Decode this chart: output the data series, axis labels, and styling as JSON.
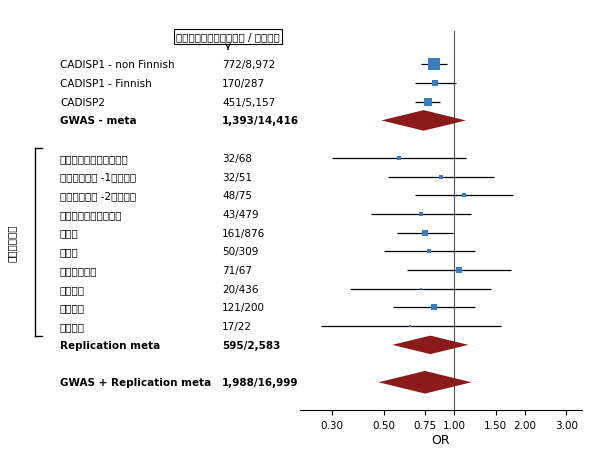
{
  "studies": [
    {
      "label": "CADISP1 - non Finnish",
      "n": "772/8,972",
      "or": 0.82,
      "ci_lo": 0.72,
      "ci_hi": 0.93,
      "bold": false,
      "shape": "square",
      "color": "#3a7abf",
      "marker_size": 8,
      "group": "gwas"
    },
    {
      "label": "CADISP1 - Finnish",
      "n": "170/287",
      "or": 0.83,
      "ci_lo": 0.68,
      "ci_hi": 1.02,
      "bold": false,
      "shape": "square",
      "color": "#3a7abf",
      "marker_size": 4,
      "group": "gwas"
    },
    {
      "label": "CADISP2",
      "n": "451/5,157",
      "or": 0.77,
      "ci_lo": 0.68,
      "ci_hi": 0.87,
      "bold": false,
      "shape": "square",
      "color": "#3a7abf",
      "marker_size": 6,
      "group": "gwas"
    },
    {
      "label": "GWAS - meta",
      "n": "1,393/14,416",
      "or": 0.74,
      "ci_lo": 0.67,
      "ci_hi": 0.82,
      "bold": true,
      "shape": "diamond",
      "color": "#8b1a1a",
      "marker_size": 10,
      "group": "gwas_meta"
    },
    {
      "label": "メリーランド州（米国）",
      "n": "32/68",
      "or": 0.58,
      "ci_lo": 0.3,
      "ci_hi": 1.12,
      "bold": false,
      "shape": "square",
      "color": "#3a7abf",
      "marker_size": 3,
      "group": "rep"
    },
    {
      "label": "バージニア州 -1（米国）",
      "n": "32/51",
      "or": 0.88,
      "ci_lo": 0.52,
      "ci_hi": 1.48,
      "bold": false,
      "shape": "square",
      "color": "#3a7abf",
      "marker_size": 3,
      "group": "rep"
    },
    {
      "label": "バージニア州 -2（米国）",
      "n": "48/75",
      "or": 1.1,
      "ci_lo": 0.68,
      "ci_hi": 1.78,
      "bold": false,
      "shape": "square",
      "color": "#3a7abf",
      "marker_size": 3,
      "group": "rep"
    },
    {
      "label": "ミュンヘン（ドイツ）",
      "n": "43/479",
      "or": 0.72,
      "ci_lo": 0.44,
      "ci_hi": 1.18,
      "bold": false,
      "shape": "square",
      "color": "#3a7abf",
      "marker_size": 3,
      "group": "rep"
    },
    {
      "label": "ドイツ",
      "n": "161/876",
      "or": 0.75,
      "ci_lo": 0.57,
      "ci_hi": 0.99,
      "bold": false,
      "shape": "square",
      "color": "#3a7abf",
      "marker_size": 5,
      "group": "rep"
    },
    {
      "label": "スイス",
      "n": "50/309",
      "or": 0.78,
      "ci_lo": 0.5,
      "ci_hi": 1.22,
      "bold": false,
      "shape": "square",
      "color": "#3a7abf",
      "marker_size": 3,
      "group": "rep"
    },
    {
      "label": "スウェーデン",
      "n": "71/67",
      "or": 1.05,
      "ci_lo": 0.63,
      "ci_hi": 1.75,
      "bold": false,
      "shape": "square",
      "color": "#3a7abf",
      "marker_size": 4,
      "group": "rep"
    },
    {
      "label": "オランダ",
      "n": "20/436",
      "or": 0.72,
      "ci_lo": 0.36,
      "ci_hi": 1.44,
      "bold": false,
      "shape": "square",
      "color": "#3a7abf",
      "marker_size": 2,
      "group": "rep"
    },
    {
      "label": "イタリア",
      "n": "121/200",
      "or": 0.82,
      "ci_lo": 0.55,
      "ci_hi": 1.22,
      "bold": false,
      "shape": "square",
      "color": "#3a7abf",
      "marker_size": 4,
      "group": "rep"
    },
    {
      "label": "スペイン",
      "n": "17/22",
      "or": 0.65,
      "ci_lo": 0.27,
      "ci_hi": 1.58,
      "bold": false,
      "shape": "square",
      "color": "#3a7abf",
      "marker_size": 2,
      "group": "rep"
    },
    {
      "label": "Replication meta",
      "n": "595/2,583",
      "or": 0.79,
      "ci_lo": 0.66,
      "ci_hi": 0.95,
      "bold": true,
      "shape": "diamond",
      "color": "#8b1a1a",
      "marker_size": 9,
      "group": "rep_meta"
    },
    {
      "label": "GWAS + Replication meta",
      "n": "1,988/16,999",
      "or": 0.75,
      "ci_lo": 0.69,
      "ci_hi": 0.82,
      "bold": true,
      "shape": "diamond",
      "color": "#8b1a1a",
      "marker_size": 11,
      "group": "total"
    }
  ],
  "xticks": [
    0.3,
    0.5,
    0.75,
    1.0,
    1.5,
    2.0,
    3.0
  ],
  "xticklabels": [
    "0.30",
    "0.50",
    "0.75",
    "1.00",
    "1.50",
    "2.00",
    "3.00"
  ],
  "xlim_lo": 0.22,
  "xlim_hi": 3.5,
  "xlabel": "OR",
  "vline_x": 1.0,
  "header_label": "頸部動脈解離症の患者数 / 対照者数",
  "y_label_rotated": "再現性の確認",
  "blue_color": "#3a7abf",
  "red_color": "#8b1a1a",
  "positions": [
    15,
    14,
    13,
    12,
    10,
    9,
    8,
    7,
    6,
    5,
    4,
    3,
    2,
    1,
    0,
    -2
  ]
}
